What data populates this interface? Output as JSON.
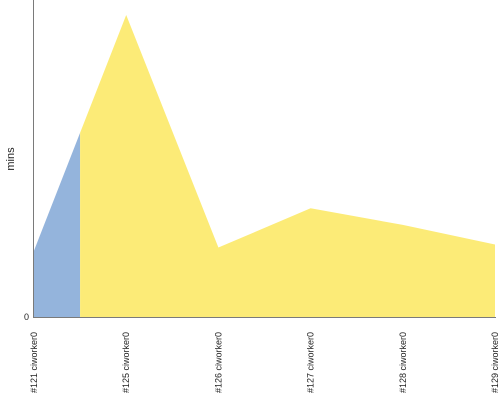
{
  "chart_data": {
    "type": "area",
    "ylabel": "mins",
    "y_tick_labels": [
      "0"
    ],
    "categories": [
      "#121 ciworker0",
      "#125 ciworker0",
      "#126 ciworker0",
      "#127 ciworker0",
      "#128 ciworker0",
      "#129 ciworker0"
    ],
    "ylim": [
      0,
      100
    ],
    "segments": [
      {
        "color": "#94b4dc",
        "points": [
          [
            0,
            22
          ],
          [
            0.5,
            61
          ]
        ]
      },
      {
        "color": "#fceb77",
        "points": [
          [
            0.5,
            61
          ],
          [
            1,
            100
          ],
          [
            2,
            23
          ],
          [
            3,
            36
          ],
          [
            4,
            30.5
          ],
          [
            5,
            24
          ]
        ]
      }
    ],
    "grid": false,
    "legend": "none"
  }
}
